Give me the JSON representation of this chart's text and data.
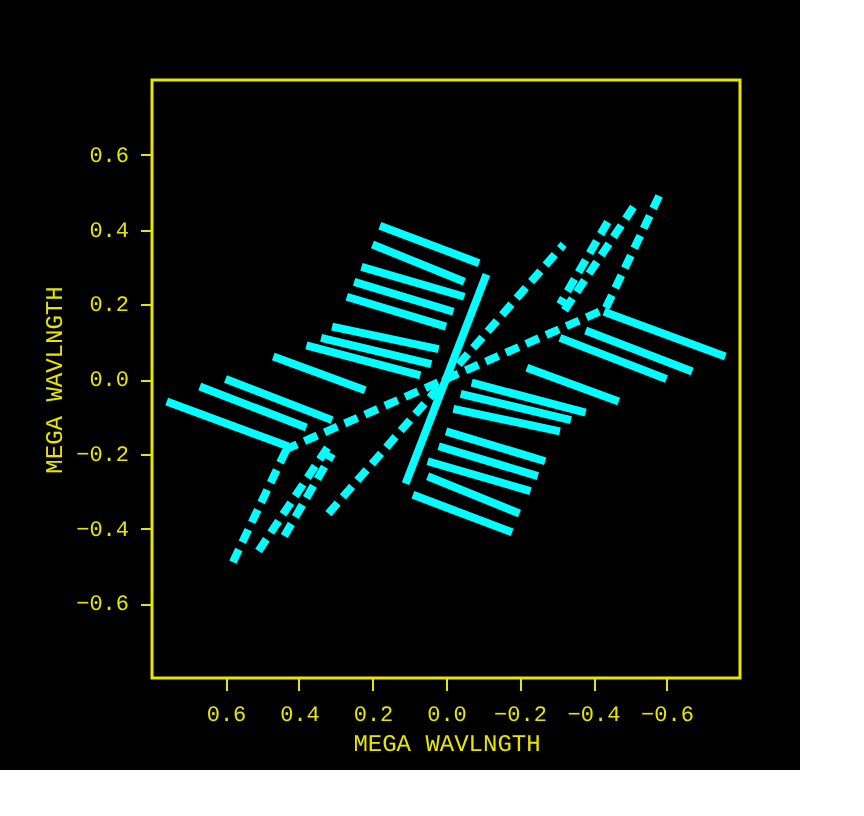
{
  "chart_data": {
    "type": "line",
    "xlabel": "MEGA WAVLNGTH",
    "ylabel": "MEGA WAVLNGTH",
    "xlim": [
      0.8,
      -0.8
    ],
    "ylim": [
      -0.8,
      0.8
    ],
    "xticks": [
      0.6,
      0.4,
      0.2,
      {
        "value": 0,
        "label": "0.0"
      },
      -0.2,
      -0.4,
      -0.6
    ],
    "yticks": [
      -0.6,
      -0.4,
      -0.2,
      {
        "value": 0,
        "label": "0.0"
      },
      0.2,
      0.4,
      0.6
    ],
    "grid": false,
    "marker": "none",
    "line_style": "solid",
    "series": [
      {
        "color": "#00ffff",
        "x": [
          0.18,
          -0.09
        ],
        "values": [
          0.41,
          0.31
        ]
      },
      {
        "color": "#00ffff",
        "x": [
          0.2,
          -0.05
        ],
        "values": [
          0.36,
          0.26
        ]
      },
      {
        "color": "#00ffff",
        "x": [
          0.23,
          -0.05
        ],
        "values": [
          0.3,
          0.22
        ]
      },
      {
        "color": "#00ffff",
        "x": [
          0.25,
          -0.02
        ],
        "values": [
          0.26,
          0.18
        ]
      },
      {
        "color": "#00ffff",
        "x": [
          0.27,
          0.0
        ],
        "values": [
          0.22,
          0.14
        ]
      },
      {
        "color": "#00ffff",
        "x": [
          0.31,
          0.02
        ],
        "values": [
          0.14,
          0.08
        ]
      },
      {
        "color": "#00ffff",
        "x": [
          0.34,
          0.04
        ],
        "values": [
          0.11,
          0.04
        ]
      },
      {
        "color": "#00ffff",
        "x": [
          0.38,
          0.07
        ],
        "values": [
          0.09,
          0.01
        ]
      },
      {
        "color": "#00ffff",
        "x": [
          0.47,
          0.22
        ],
        "values": [
          0.06,
          -0.03
        ]
      },
      {
        "color": "#00ffff",
        "x": [
          0.6,
          0.31
        ],
        "values": [
          0.0,
          -0.11
        ]
      },
      {
        "color": "#00ffff",
        "x": [
          0.67,
          0.38
        ],
        "values": [
          -0.02,
          -0.13
        ]
      },
      {
        "color": "#00ffff",
        "x": [
          0.76,
          0.43
        ],
        "values": [
          -0.06,
          -0.18
        ]
      },
      {
        "color": "#00ffff",
        "x": [
          -0.18,
          0.09
        ],
        "values": [
          -0.41,
          -0.31
        ]
      },
      {
        "color": "#00ffff",
        "x": [
          -0.2,
          0.05
        ],
        "values": [
          -0.36,
          -0.26
        ]
      },
      {
        "color": "#00ffff",
        "x": [
          -0.23,
          0.05
        ],
        "values": [
          -0.3,
          -0.22
        ]
      },
      {
        "color": "#00ffff",
        "x": [
          -0.25,
          0.02
        ],
        "values": [
          -0.26,
          -0.18
        ]
      },
      {
        "color": "#00ffff",
        "x": [
          -0.27,
          0.0
        ],
        "values": [
          -0.22,
          -0.14
        ]
      },
      {
        "color": "#00ffff",
        "x": [
          -0.31,
          -0.02
        ],
        "values": [
          -0.14,
          -0.08
        ]
      },
      {
        "color": "#00ffff",
        "x": [
          -0.34,
          -0.04
        ],
        "values": [
          -0.11,
          -0.04
        ]
      },
      {
        "color": "#00ffff",
        "x": [
          -0.38,
          -0.07
        ],
        "values": [
          -0.09,
          -0.01
        ]
      },
      {
        "color": "#00ffff",
        "x": [
          -0.47,
          -0.22
        ],
        "values": [
          -0.06,
          0.03
        ]
      },
      {
        "color": "#00ffff",
        "x": [
          -0.6,
          -0.31
        ],
        "values": [
          0.0,
          0.11
        ]
      },
      {
        "color": "#00ffff",
        "x": [
          -0.67,
          -0.38
        ],
        "values": [
          0.02,
          0.13
        ]
      },
      {
        "color": "#00ffff",
        "x": [
          -0.76,
          -0.43
        ],
        "values": [
          0.06,
          0.18
        ]
      },
      {
        "color": "#00ffff",
        "line_style": "dashed",
        "x": [
          0.58,
          0.43
        ],
        "values": [
          -0.49,
          -0.18
        ]
      },
      {
        "color": "#00ffff",
        "line_style": "dashed",
        "x": [
          0.51,
          0.32
        ],
        "values": [
          -0.46,
          -0.18
        ]
      },
      {
        "color": "#00ffff",
        "line_style": "dashed",
        "x": [
          0.44,
          0.31
        ],
        "values": [
          -0.42,
          -0.2
        ]
      },
      {
        "color": "#00ffff",
        "line_style": "dashed",
        "x": [
          -0.58,
          -0.43
        ],
        "values": [
          0.49,
          0.18
        ]
      },
      {
        "color": "#00ffff",
        "line_style": "dashed",
        "x": [
          -0.51,
          -0.32
        ],
        "values": [
          0.46,
          0.18
        ]
      },
      {
        "color": "#00ffff",
        "line_style": "dashed",
        "x": [
          -0.44,
          -0.31
        ],
        "values": [
          0.42,
          0.2
        ]
      },
      {
        "color": "#00ffff",
        "line_style": "dashed",
        "x": [
          0.32,
          -0.32
        ],
        "values": [
          -0.36,
          0.36
        ]
      },
      {
        "color": "#00ffff",
        "x": [
          0.11,
          -0.11
        ],
        "values": [
          -0.28,
          0.28
        ]
      },
      {
        "color": "#00ffff",
        "line_style": "dashed",
        "x": [
          0.44,
          -0.44
        ],
        "values": [
          -0.19,
          0.19
        ]
      }
    ]
  }
}
